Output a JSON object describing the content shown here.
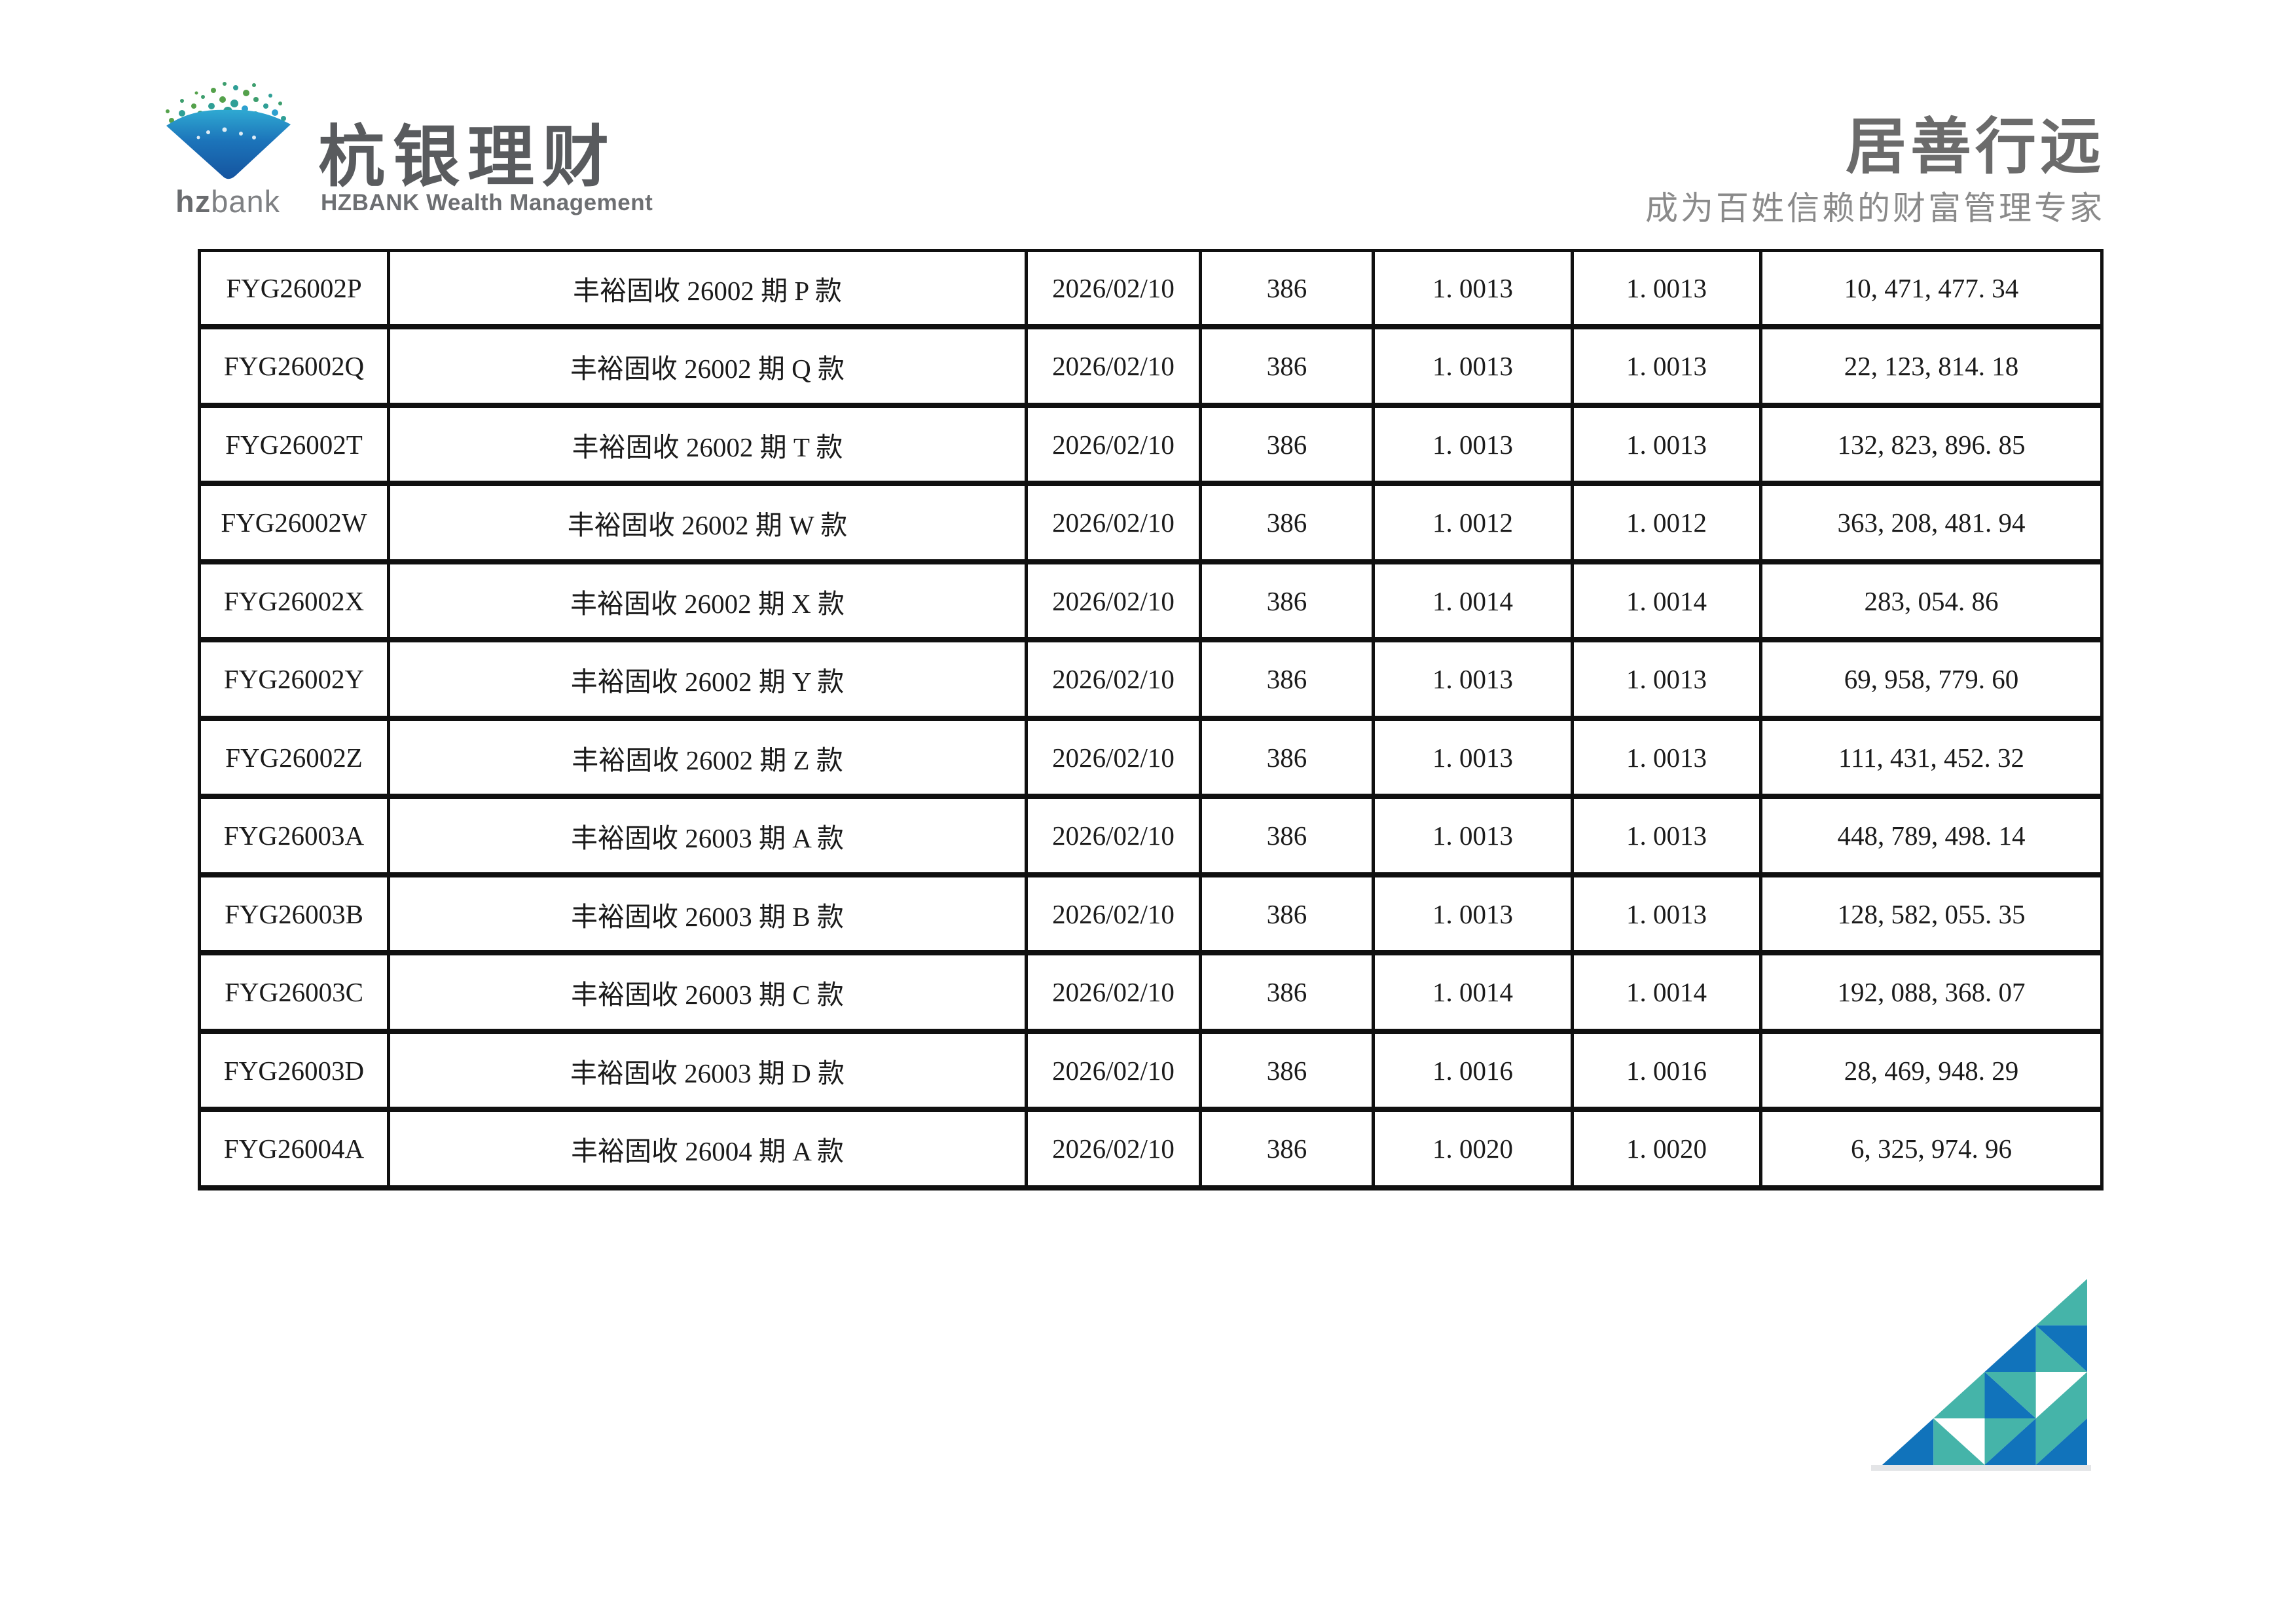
{
  "header": {
    "logo": {
      "mark": "hzbank-diamond-butterflies-logo",
      "wordmark_bold": "hz",
      "wordmark_rest": "bank",
      "cn_name": "杭银理财",
      "en_name": "HZBANK Wealth Management"
    },
    "slogan": {
      "title": "居善行远",
      "subtitle": "成为百姓信赖的财富管理专家"
    }
  },
  "table": {
    "column_keys": [
      "code",
      "name",
      "date",
      "days",
      "nav",
      "acc_nav",
      "amount"
    ],
    "rows": [
      {
        "code": "FYG26002P",
        "name": "丰裕固收 26002 期 P 款",
        "date": "2026/02/10",
        "days": "386",
        "nav": "1. 0013",
        "acc_nav": "1. 0013",
        "amount": "10, 471, 477. 34"
      },
      {
        "code": "FYG26002Q",
        "name": "丰裕固收 26002 期 Q 款",
        "date": "2026/02/10",
        "days": "386",
        "nav": "1. 0013",
        "acc_nav": "1. 0013",
        "amount": "22, 123, 814. 18"
      },
      {
        "code": "FYG26002T",
        "name": "丰裕固收 26002 期 T 款",
        "date": "2026/02/10",
        "days": "386",
        "nav": "1. 0013",
        "acc_nav": "1. 0013",
        "amount": "132, 823, 896. 85"
      },
      {
        "code": "FYG26002W",
        "name": "丰裕固收 26002 期 W 款",
        "date": "2026/02/10",
        "days": "386",
        "nav": "1. 0012",
        "acc_nav": "1. 0012",
        "amount": "363, 208, 481. 94"
      },
      {
        "code": "FYG26002X",
        "name": "丰裕固收 26002 期 X 款",
        "date": "2026/02/10",
        "days": "386",
        "nav": "1. 0014",
        "acc_nav": "1. 0014",
        "amount": "283, 054. 86"
      },
      {
        "code": "FYG26002Y",
        "name": "丰裕固收 26002 期 Y 款",
        "date": "2026/02/10",
        "days": "386",
        "nav": "1. 0013",
        "acc_nav": "1. 0013",
        "amount": "69, 958, 779. 60"
      },
      {
        "code": "FYG26002Z",
        "name": "丰裕固收 26002 期 Z 款",
        "date": "2026/02/10",
        "days": "386",
        "nav": "1. 0013",
        "acc_nav": "1. 0013",
        "amount": "111, 431, 452. 32"
      },
      {
        "code": "FYG26003A",
        "name": "丰裕固收 26003 期 A 款",
        "date": "2026/02/10",
        "days": "386",
        "nav": "1. 0013",
        "acc_nav": "1. 0013",
        "amount": "448, 789, 498. 14"
      },
      {
        "code": "FYG26003B",
        "name": "丰裕固收 26003 期 B 款",
        "date": "2026/02/10",
        "days": "386",
        "nav": "1. 0013",
        "acc_nav": "1. 0013",
        "amount": "128, 582, 055. 35"
      },
      {
        "code": "FYG26003C",
        "name": "丰裕固收 26003 期 C 款",
        "date": "2026/02/10",
        "days": "386",
        "nav": "1. 0014",
        "acc_nav": "1. 0014",
        "amount": "192, 088, 368. 07"
      },
      {
        "code": "FYG26003D",
        "name": "丰裕固收 26003 期 D 款",
        "date": "2026/02/10",
        "days": "386",
        "nav": "1. 0016",
        "acc_nav": "1. 0016",
        "amount": "28, 469, 948. 29"
      },
      {
        "code": "FYG26004A",
        "name": "丰裕固收 26004 期 A 款",
        "date": "2026/02/10",
        "days": "386",
        "nav": "1. 0020",
        "acc_nav": "1. 0020",
        "amount": "6, 325, 974. 96"
      }
    ]
  },
  "decoration": {
    "triangle_teal": "#45B4A9",
    "triangle_blue": "#1173BB",
    "triangle_white": "#FFFFFF",
    "logo_blue_top": "#2FA9D2",
    "logo_blue_bottom": "#15549F",
    "logo_green": "#54A14B"
  }
}
